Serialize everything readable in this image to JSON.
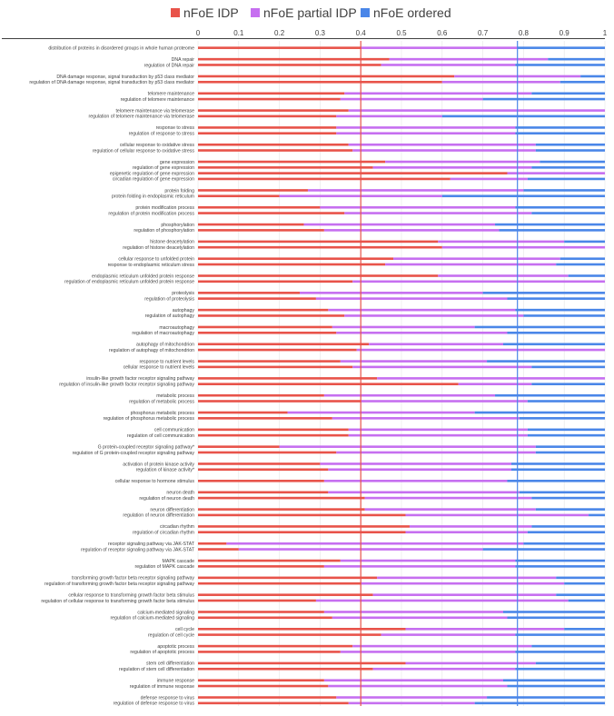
{
  "chart_data": {
    "type": "bar",
    "orientation": "horizontal",
    "stacked": true,
    "xlim": [
      0,
      1
    ],
    "xticks": [
      "0",
      "0.1",
      "0.2",
      "0.3",
      "0.4",
      "0.5",
      "0.6",
      "0.7",
      "0.8",
      "0.9",
      "1"
    ],
    "reference_lines": [
      {
        "value": 0.4,
        "color": "#e8534a"
      },
      {
        "value": 0.785,
        "color": "#4a86e8"
      }
    ],
    "series": [
      {
        "name": "nFoE IDP",
        "color": "#e8534a"
      },
      {
        "name": "nFoE partial IDP",
        "color": "#c66ff0"
      },
      {
        "name": "nFoE ordered",
        "color": "#4a86e8"
      }
    ],
    "groups": [
      {
        "items": [
          {
            "label": "distribution of proteins in disordered groups in whole human proteome",
            "idp": 0.4,
            "partial": 0.385
          }
        ]
      },
      {
        "items": [
          {
            "label": "DNA repair",
            "idp": 0.47,
            "partial": 0.39
          },
          {
            "label": "regulation of DNA repair",
            "idp": 0.45,
            "partial": 0.33
          }
        ]
      },
      {
        "items": [
          {
            "label": "DNA damage response, signal transduction by p53 class mediator",
            "idp": 0.63,
            "partial": 0.31
          },
          {
            "label": "regulation of DNA damage response, signal transduction by p53 class mediator",
            "idp": 0.6,
            "partial": 0.29
          }
        ]
      },
      {
        "items": [
          {
            "label": "telomere maintenance",
            "idp": 0.36,
            "partial": 0.46
          },
          {
            "label": "regulation of telomere maintenance",
            "idp": 0.35,
            "partial": 0.35
          }
        ]
      },
      {
        "items": [
          {
            "label": "telomere maintenance via telomerase",
            "idp": 0.37,
            "partial": 0.63
          },
          {
            "label": "regulation of telomere maintenance via telomerase",
            "idp": 0.34,
            "partial": 0.26
          }
        ]
      },
      {
        "items": [
          {
            "label": "response to stress",
            "idp": 0.34,
            "partial": 0.44
          },
          {
            "label": "regulation of response to stress",
            "idp": 0.34,
            "partial": 0.44
          }
        ]
      },
      {
        "items": [
          {
            "label": "cellular response to oxidative stress",
            "idp": 0.37,
            "partial": 0.46
          },
          {
            "label": "regulation of cellular response to oxidative stress",
            "idp": 0.38,
            "partial": 0.45
          }
        ]
      },
      {
        "items": [
          {
            "label": "gene expression",
            "idp": 0.46,
            "partial": 0.38
          },
          {
            "label": "regulation of gene expression",
            "idp": 0.43,
            "partial": 0.39
          },
          {
            "label": "epigenetic regulation of gene expression",
            "idp": 0.76,
            "partial": 0.24
          },
          {
            "label": "circadian regulation of gene expression",
            "idp": 0.62,
            "partial": 0.19
          }
        ]
      },
      {
        "items": [
          {
            "label": "protein folding",
            "idp": 0.27,
            "partial": 0.53
          },
          {
            "label": "protein folding in endoplasmic reticulum",
            "idp": 0.2,
            "partial": 0.4
          }
        ]
      },
      {
        "items": [
          {
            "label": "protein modification process",
            "idp": 0.3,
            "partial": 0.48
          },
          {
            "label": "regulation of protein modification process",
            "idp": 0.36,
            "partial": 0.46
          }
        ]
      },
      {
        "items": [
          {
            "label": "phosphorylation",
            "idp": 0.26,
            "partial": 0.47
          },
          {
            "label": "regulation of phosphorylation",
            "idp": 0.31,
            "partial": 0.43
          }
        ]
      },
      {
        "items": [
          {
            "label": "histone deacetylation",
            "idp": 0.59,
            "partial": 0.31
          },
          {
            "label": "regulation of histone deacetylation",
            "idp": 0.6,
            "partial": 0.4
          }
        ]
      },
      {
        "items": [
          {
            "label": "cellular response to unfolded protein",
            "idp": 0.48,
            "partial": 0.41
          },
          {
            "label": "response to endoplasmic reticulum stress",
            "idp": 0.46,
            "partial": 0.42
          }
        ]
      },
      {
        "items": [
          {
            "label": "endoplasmic reticulum unfolded protein response",
            "idp": 0.59,
            "partial": 0.32
          },
          {
            "label": "regulation of endoplasmic reticulum unfolded protein response",
            "idp": 0.38,
            "partial": 0.62
          }
        ]
      },
      {
        "items": [
          {
            "label": "proteolysis",
            "idp": 0.25,
            "partial": 0.45
          },
          {
            "label": "regulation of proteolysis",
            "idp": 0.29,
            "partial": 0.47
          }
        ]
      },
      {
        "items": [
          {
            "label": "autophagy",
            "idp": 0.32,
            "partial": 0.46
          },
          {
            "label": "regulation of autophagy",
            "idp": 0.36,
            "partial": 0.44
          }
        ]
      },
      {
        "items": [
          {
            "label": "macroautophagy",
            "idp": 0.33,
            "partial": 0.35
          },
          {
            "label": "regulation of macroautophagy",
            "idp": 0.34,
            "partial": 0.42
          }
        ]
      },
      {
        "items": [
          {
            "label": "autophagy of mitochondrion",
            "idp": 0.42,
            "partial": 0.33
          },
          {
            "label": "regulation of autophagy of mitochondrion",
            "idp": 0.39,
            "partial": 0.61
          }
        ]
      },
      {
        "items": [
          {
            "label": "response to nutrient levels",
            "idp": 0.35,
            "partial": 0.36
          },
          {
            "label": "cellular response to nutrient levels",
            "idp": 0.38,
            "partial": 0.44
          }
        ]
      },
      {
        "items": [
          {
            "label": "insulin-like growth factor receptor signaling pathway",
            "idp": 0.44,
            "partial": 0.56
          },
          {
            "label": "regulation of insulin-like growth factor receptor signaling pathway",
            "idp": 0.64,
            "partial": 0.18
          }
        ]
      },
      {
        "items": [
          {
            "label": "metabolic process",
            "idp": 0.31,
            "partial": 0.42
          },
          {
            "label": "regulation of metabolic process",
            "idp": 0.4,
            "partial": 0.41
          }
        ]
      },
      {
        "items": [
          {
            "label": "phosphorus metabolic process",
            "idp": 0.22,
            "partial": 0.46
          },
          {
            "label": "regulation of phosphorus metabolic process",
            "idp": 0.33,
            "partial": 0.46
          }
        ]
      },
      {
        "items": [
          {
            "label": "cell communication",
            "idp": 0.37,
            "partial": 0.44
          },
          {
            "label": "regulation of cell communication",
            "idp": 0.37,
            "partial": 0.44
          }
        ]
      },
      {
        "items": [
          {
            "label": "G protein-coupled receptor signaling pathway*",
            "idp": 0.2,
            "partial": 0.63
          },
          {
            "label": "regulation of G protein-coupled receptor signaling pathway",
            "idp": 0.34,
            "partial": 0.49
          }
        ]
      },
      {
        "items": [
          {
            "label": "activation of protein kinase activity",
            "idp": 0.3,
            "partial": 0.47
          },
          {
            "label": "regulation of kinase activity*",
            "idp": 0.32,
            "partial": 0.45
          }
        ]
      },
      {
        "items": [
          {
            "label": "cellular response to hormone stimulus",
            "idp": 0.31,
            "partial": 0.45
          }
        ]
      },
      {
        "items": [
          {
            "label": "neuron death",
            "idp": 0.32,
            "partial": 0.47
          },
          {
            "label": "regulation of neuron death",
            "idp": 0.41,
            "partial": 0.41
          }
        ]
      },
      {
        "items": [
          {
            "label": "neuron differentiation",
            "idp": 0.41,
            "partial": 0.42
          },
          {
            "label": "regulation of neuron differentiation",
            "idp": 0.51,
            "partial": 0.45
          }
        ]
      },
      {
        "items": [
          {
            "label": "circadian rhythm",
            "idp": 0.52,
            "partial": 0.3
          },
          {
            "label": "regulation of circadian rhythm",
            "idp": 0.51,
            "partial": 0.3
          }
        ]
      },
      {
        "items": [
          {
            "label": "receptor signaling pathway via JAK-STAT",
            "idp": 0.07,
            "partial": 0.73
          },
          {
            "label": "regulation of receptor signaling pathway via JAK-STAT",
            "idp": 0.1,
            "partial": 0.6
          }
        ]
      },
      {
        "items": [
          {
            "label": "MAPK cascade",
            "idp": 0.35,
            "partial": 0.43
          },
          {
            "label": "regulation of MAPK cascade",
            "idp": 0.31,
            "partial": 0.47
          }
        ]
      },
      {
        "items": [
          {
            "label": "transforming growth factor beta receptor signaling pathway",
            "idp": 0.44,
            "partial": 0.44
          },
          {
            "label": "regulation of transforming growth factor beta receptor signaling pathway",
            "idp": 0.4,
            "partial": 0.5
          }
        ]
      },
      {
        "items": [
          {
            "label": "cellular response to transforming growth factor beta stimulus",
            "idp": 0.43,
            "partial": 0.45
          },
          {
            "label": "regulation of cellular response to transforming growth factor beta stimulus",
            "idp": 0.29,
            "partial": 0.62
          }
        ]
      },
      {
        "items": [
          {
            "label": "calcium-mediated signaling",
            "idp": 0.31,
            "partial": 0.44
          },
          {
            "label": "regulation of calcium-mediated signaling",
            "idp": 0.33,
            "partial": 0.43
          }
        ]
      },
      {
        "items": [
          {
            "label": "cell cycle",
            "idp": 0.51,
            "partial": 0.39
          },
          {
            "label": "regulation of cell cycle",
            "idp": 0.45,
            "partial": 0.33
          }
        ]
      },
      {
        "items": [
          {
            "label": "apoptotic process",
            "idp": 0.38,
            "partial": 0.44
          },
          {
            "label": "regulation of apoptotic process",
            "idp": 0.35,
            "partial": 0.43
          }
        ]
      },
      {
        "items": [
          {
            "label": "stem cell differentiation",
            "idp": 0.51,
            "partial": 0.32
          },
          {
            "label": "regulation of stem cell differentiation",
            "idp": 0.43,
            "partial": 0.35
          }
        ]
      },
      {
        "items": [
          {
            "label": "immune response",
            "idp": 0.31,
            "partial": 0.44
          },
          {
            "label": "regulation of immune response",
            "idp": 0.32,
            "partial": 0.44
          }
        ]
      },
      {
        "items": [
          {
            "label": "defense response to virus",
            "idp": 0.34,
            "partial": 0.37
          },
          {
            "label": "regulation of defense response to virus",
            "idp": 0.37,
            "partial": 0.31
          }
        ]
      }
    ]
  }
}
